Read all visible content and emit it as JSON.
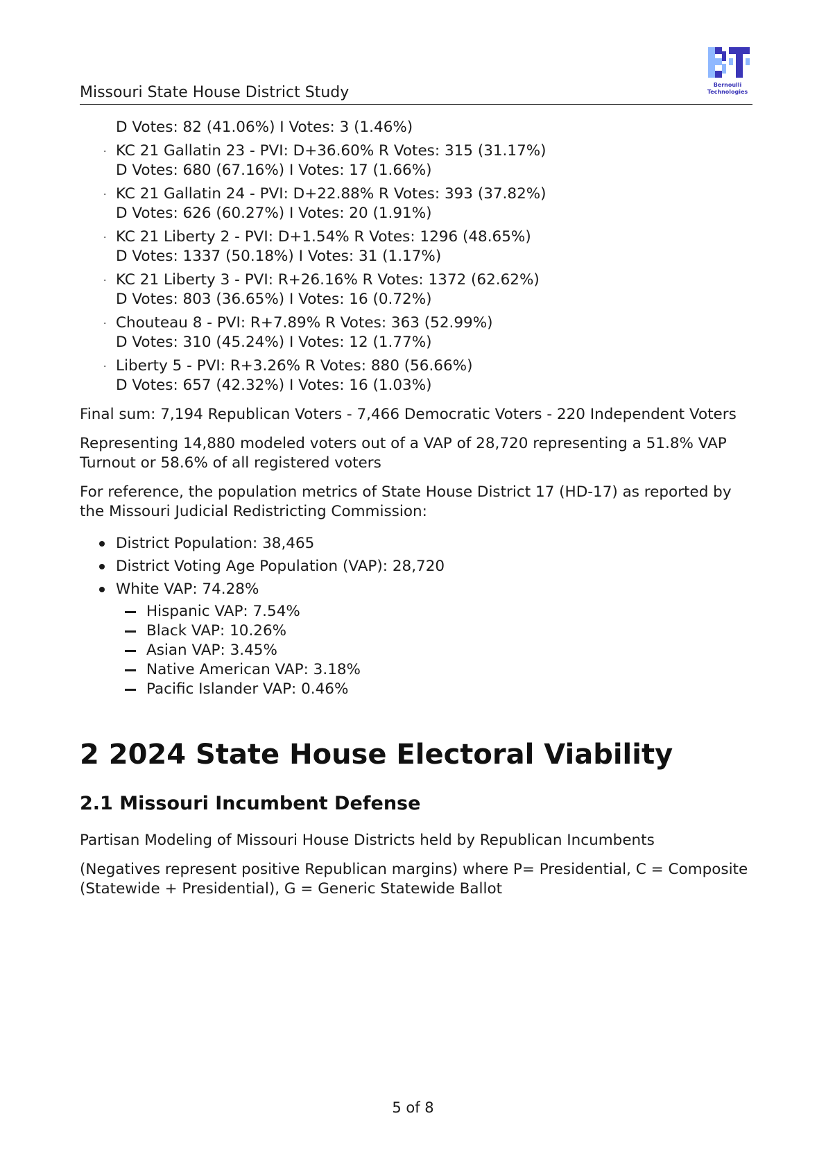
{
  "header": {
    "title": "Missouri State House District Study",
    "logo_text": "Bernoulli Technologies",
    "logo_colors": {
      "light": "#8fb8ff",
      "dark": "#3b36b8"
    }
  },
  "vote_items": [
    {
      "bullet": "",
      "line1": "",
      "line2": "D Votes: 82 (41.06%) I Votes: 3 (1.46%)"
    },
    {
      "bullet": "·",
      "line1": "KC 21 Gallatin 23 - PVI: D+36.60% R Votes: 315 (31.17%)",
      "line2": "D Votes: 680 (67.16%) I Votes: 17 (1.66%)"
    },
    {
      "bullet": "·",
      "line1": "KC 21 Gallatin 24 - PVI: D+22.88% R Votes: 393 (37.82%)",
      "line2": "D Votes: 626 (60.27%) I Votes: 20 (1.91%)"
    },
    {
      "bullet": "·",
      "line1": "KC 21 Liberty 2 - PVI: D+1.54% R Votes: 1296 (48.65%)",
      "line2": "D Votes: 1337 (50.18%) I Votes: 31 (1.17%)"
    },
    {
      "bullet": "·",
      "line1": "KC 21 Liberty 3 - PVI: R+26.16% R Votes: 1372 (62.62%)",
      "line2": "D Votes: 803 (36.65%) I Votes: 16 (0.72%)"
    },
    {
      "bullet": "·",
      "line1": "Chouteau 8 - PVI: R+7.89% R Votes: 363 (52.99%)",
      "line2": "D Votes: 310 (45.24%) I Votes: 12 (1.77%)"
    },
    {
      "bullet": "·",
      "line1": "Liberty 5 - PVI: R+3.26% R Votes: 880 (56.66%)",
      "line2": "D Votes: 657 (42.32%) I Votes: 16 (1.03%)"
    }
  ],
  "final_sum": "Final sum: 7,194 Republican Voters - 7,466 Democratic Voters - 220 Independent Voters",
  "representing": "Representing 14,880 modeled voters out of a VAP of 28,720 representing a 51.8% VAP Turnout or 58.6% of all registered voters",
  "reference": "For reference, the population metrics of State House District 17 (HD-17) as reported by the Missouri Judicial Redistricting Commission:",
  "metrics": [
    "District Population: 38,465",
    "District Voting Age Population (VAP): 28,720",
    "White VAP: 74.28%"
  ],
  "sub_metrics": [
    "Hispanic VAP: 7.54%",
    "Black VAP: 10.26%",
    "Asian VAP: 3.45%",
    "Native American VAP: 3.18%",
    "Pacific Islander VAP: 0.46%"
  ],
  "section_heading": "2 2024 State House Electoral Viability",
  "subsection_heading": "2.1 Missouri Incumbent Defense",
  "para_partisan": "Partisan Modeling of Missouri House Districts held by Republican Incumbents",
  "para_negatives": "(Negatives represent positive Republican margins) where P= Presidential, C = Composite (Statewide + Presidential), G = Generic Statewide Ballot",
  "footer": {
    "page": "5 of 8"
  }
}
